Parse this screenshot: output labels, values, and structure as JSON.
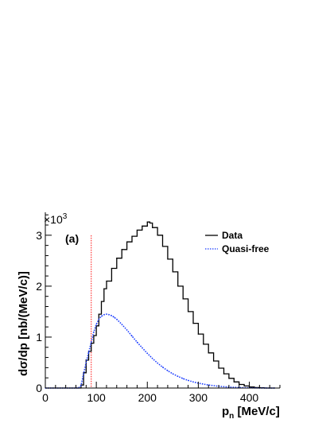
{
  "chart_data": {
    "type": "line",
    "panel_label": "(a)",
    "xlabel": "p",
    "xlabel_sub": "n",
    "xlabel_units": " [MeV/c]",
    "ylabel": "dσ/dp [nb/(MeV/c)]",
    "y_multiplier_base": "×10",
    "y_multiplier_exp": "3",
    "xlim": [
      0,
      460
    ],
    "ylim": [
      0,
      3.45
    ],
    "x_ticks": [
      0,
      100,
      200,
      300,
      400
    ],
    "y_ticks": [
      0,
      1,
      2,
      3
    ],
    "grid": false,
    "legend_position": "top-right",
    "threshold_line_x": 90,
    "colors": {
      "data": "#000000",
      "quasi_free": "#1a3cff",
      "threshold": "#ff2020"
    },
    "series": [
      {
        "name": "Data",
        "style": "solid-step",
        "x": [
          0,
          65,
          70,
          75,
          80,
          85,
          90,
          95,
          100,
          105,
          110,
          115,
          120,
          130,
          140,
          150,
          160,
          170,
          180,
          190,
          200,
          205,
          210,
          220,
          230,
          240,
          250,
          260,
          270,
          280,
          290,
          300,
          310,
          320,
          330,
          340,
          350,
          360,
          370,
          380,
          390,
          400,
          410,
          420,
          430,
          440,
          450
        ],
        "values": [
          0,
          0,
          0.06,
          0.3,
          0.55,
          0.72,
          0.88,
          1.03,
          1.22,
          1.45,
          1.7,
          1.95,
          2.1,
          2.35,
          2.55,
          2.72,
          2.87,
          2.98,
          3.1,
          3.18,
          3.26,
          3.24,
          3.15,
          3.0,
          2.78,
          2.53,
          2.28,
          2.0,
          1.75,
          1.5,
          1.27,
          1.06,
          0.86,
          0.69,
          0.53,
          0.39,
          0.28,
          0.19,
          0.12,
          0.07,
          0.04,
          0.02,
          0.01,
          0.005,
          0,
          0,
          0
        ]
      },
      {
        "name": "Quasi-free",
        "style": "dotted",
        "x": [
          0,
          65,
          70,
          75,
          80,
          85,
          90,
          95,
          100,
          105,
          110,
          115,
          120,
          125,
          130,
          135,
          140,
          150,
          160,
          170,
          180,
          190,
          200,
          210,
          220,
          230,
          240,
          250,
          260,
          270,
          280,
          290,
          300,
          320,
          340,
          360,
          380,
          400,
          420,
          440,
          450
        ],
        "values": [
          0,
          0,
          0.05,
          0.28,
          0.5,
          0.7,
          0.9,
          1.1,
          1.25,
          1.35,
          1.41,
          1.44,
          1.45,
          1.44,
          1.42,
          1.39,
          1.35,
          1.25,
          1.14,
          1.02,
          0.9,
          0.79,
          0.68,
          0.58,
          0.49,
          0.41,
          0.34,
          0.28,
          0.23,
          0.185,
          0.15,
          0.12,
          0.095,
          0.06,
          0.035,
          0.018,
          0.009,
          0.004,
          0.002,
          0,
          0
        ]
      }
    ]
  }
}
